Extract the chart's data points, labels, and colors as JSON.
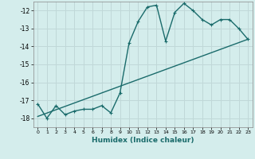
{
  "xlabel": "Humidex (Indice chaleur)",
  "bg_color": "#d4edec",
  "grid_color": "#c0d8d8",
  "line_color": "#1a6b6b",
  "xlim": [
    -0.5,
    23.5
  ],
  "ylim": [
    -18.5,
    -11.5
  ],
  "yticks": [
    -18,
    -17,
    -16,
    -15,
    -14,
    -13,
    -12
  ],
  "xticks": [
    0,
    1,
    2,
    3,
    4,
    5,
    6,
    7,
    8,
    9,
    10,
    11,
    12,
    13,
    14,
    15,
    16,
    17,
    18,
    19,
    20,
    21,
    22,
    23
  ],
  "line1_x": [
    0,
    1,
    2,
    3,
    4,
    5,
    6,
    7,
    8,
    9,
    10,
    11,
    12,
    13,
    14,
    15,
    16,
    17,
    18,
    19,
    20,
    21,
    22,
    23
  ],
  "line1_y": [
    -17.2,
    -18.0,
    -17.3,
    -17.8,
    -17.6,
    -17.5,
    -17.5,
    -17.3,
    -17.7,
    -16.6,
    -13.8,
    -12.6,
    -11.8,
    -11.7,
    -13.7,
    -12.1,
    -11.6,
    -12.0,
    -12.5,
    -12.8,
    -12.5,
    -12.5,
    -13.0,
    -13.6
  ],
  "line2_x": [
    0,
    23
  ],
  "line2_y": [
    -17.9,
    -13.6
  ],
  "markersize": 2.5,
  "linewidth": 1.0,
  "xlabel_fontsize": 6.5,
  "tick_fontsize": 5.5
}
